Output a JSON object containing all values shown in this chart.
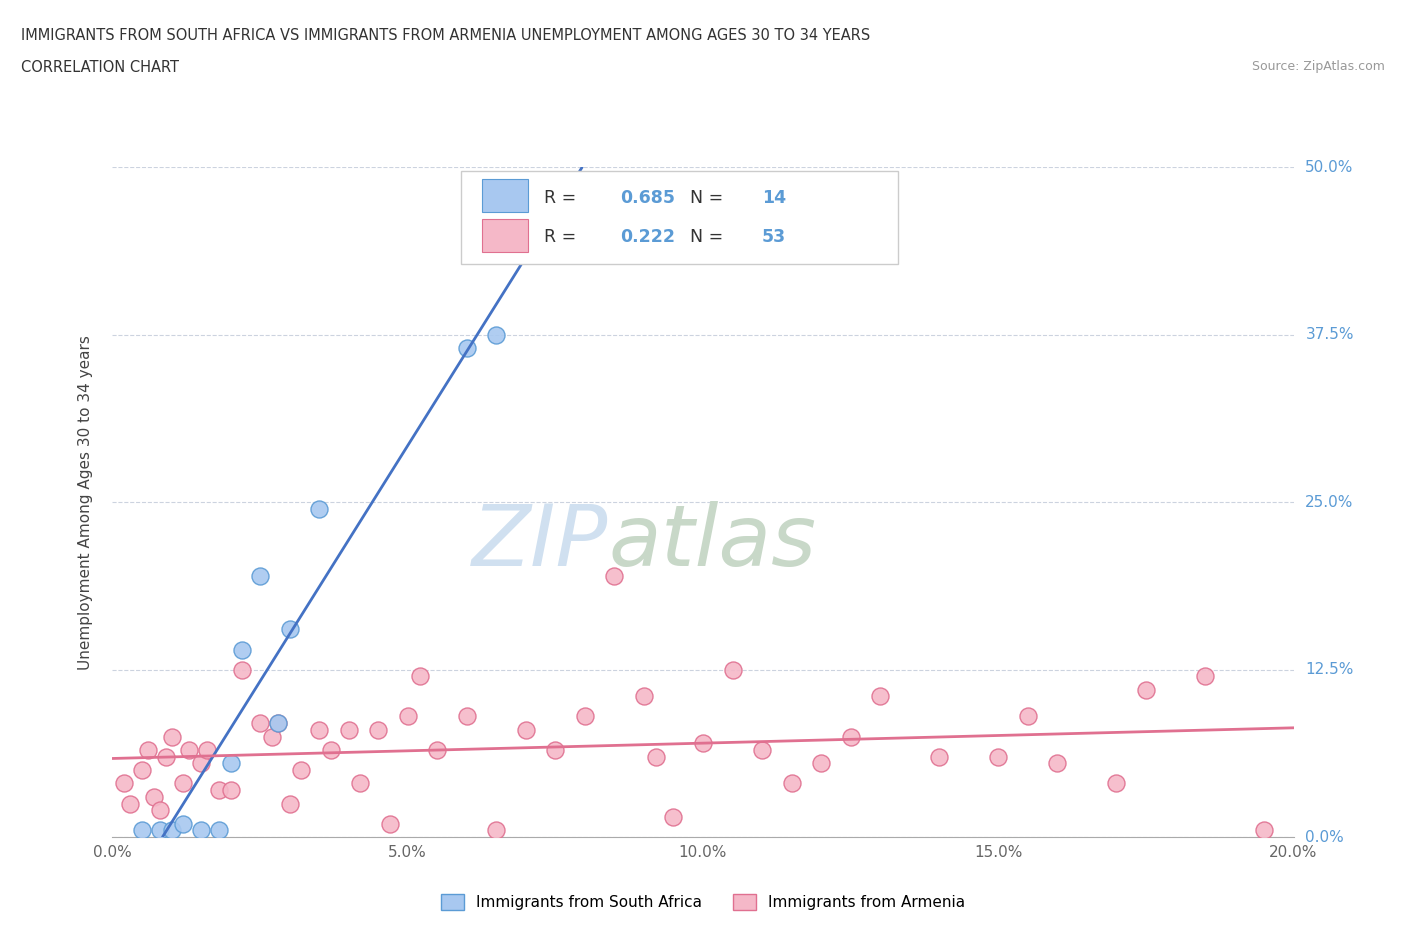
{
  "title_line1": "IMMIGRANTS FROM SOUTH AFRICA VS IMMIGRANTS FROM ARMENIA UNEMPLOYMENT AMONG AGES 30 TO 34 YEARS",
  "title_line2": "CORRELATION CHART",
  "source": "Source: ZipAtlas.com",
  "ylabel": "Unemployment Among Ages 30 to 34 years",
  "xlim": [
    0.0,
    0.2
  ],
  "ylim": [
    0.0,
    0.5
  ],
  "xticks": [
    0.0,
    0.05,
    0.1,
    0.15,
    0.2
  ],
  "yticks": [
    0.0,
    0.125,
    0.25,
    0.375,
    0.5
  ],
  "xtick_labels": [
    "0.0%",
    "5.0%",
    "10.0%",
    "15.0%",
    "20.0%"
  ],
  "ytick_labels": [
    "0.0%",
    "12.5%",
    "25.0%",
    "37.5%",
    "50.0%"
  ],
  "blue_fill": "#A8C8F0",
  "blue_edge": "#5B9BD5",
  "pink_fill": "#F5B8C8",
  "pink_edge": "#E07090",
  "blue_line": "#4472C4",
  "pink_line": "#E07090",
  "R_blue": 0.685,
  "N_blue": 14,
  "R_pink": 0.222,
  "N_pink": 53,
  "legend_label_blue": "Immigrants from South Africa",
  "legend_label_pink": "Immigrants from Armenia",
  "watermark_zip": "ZIP",
  "watermark_atlas": "atlas",
  "blue_scatter_x": [
    0.005,
    0.008,
    0.01,
    0.012,
    0.015,
    0.018,
    0.02,
    0.022,
    0.025,
    0.028,
    0.03,
    0.035,
    0.06,
    0.065
  ],
  "blue_scatter_y": [
    0.005,
    0.005,
    0.005,
    0.01,
    0.005,
    0.005,
    0.055,
    0.14,
    0.195,
    0.085,
    0.155,
    0.245,
    0.365,
    0.375
  ],
  "pink_scatter_x": [
    0.002,
    0.003,
    0.005,
    0.006,
    0.007,
    0.008,
    0.009,
    0.01,
    0.012,
    0.013,
    0.015,
    0.016,
    0.018,
    0.02,
    0.022,
    0.025,
    0.027,
    0.028,
    0.03,
    0.032,
    0.035,
    0.037,
    0.04,
    0.042,
    0.045,
    0.047,
    0.05,
    0.052,
    0.055,
    0.06,
    0.065,
    0.07,
    0.075,
    0.08,
    0.085,
    0.09,
    0.092,
    0.095,
    0.1,
    0.105,
    0.11,
    0.115,
    0.12,
    0.125,
    0.13,
    0.14,
    0.15,
    0.155,
    0.16,
    0.17,
    0.175,
    0.185,
    0.195
  ],
  "pink_scatter_y": [
    0.04,
    0.025,
    0.05,
    0.065,
    0.03,
    0.02,
    0.06,
    0.075,
    0.04,
    0.065,
    0.055,
    0.065,
    0.035,
    0.035,
    0.125,
    0.085,
    0.075,
    0.085,
    0.025,
    0.05,
    0.08,
    0.065,
    0.08,
    0.04,
    0.08,
    0.01,
    0.09,
    0.12,
    0.065,
    0.09,
    0.005,
    0.08,
    0.065,
    0.09,
    0.195,
    0.105,
    0.06,
    0.015,
    0.07,
    0.125,
    0.065,
    0.04,
    0.055,
    0.075,
    0.105,
    0.06,
    0.06,
    0.09,
    0.055,
    0.04,
    0.11,
    0.12,
    0.005
  ]
}
